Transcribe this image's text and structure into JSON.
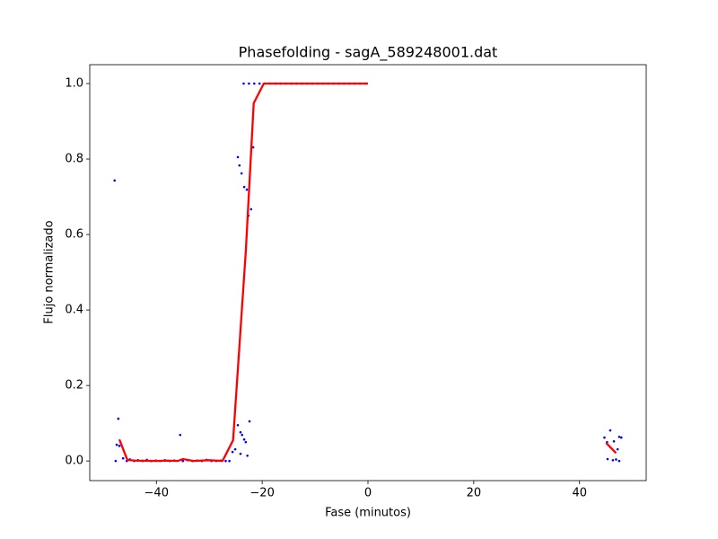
{
  "chart_data": {
    "type": "scatter",
    "title": "Phasefolding - sagA_589248001.dat",
    "xlabel": "Fase (minutos)",
    "ylabel": "Flujo normalizado",
    "xlim": [
      -52.6,
      52.6
    ],
    "ylim": [
      -0.052,
      1.05
    ],
    "xticks": [
      {
        "value": -40,
        "label": "−40"
      },
      {
        "value": -20,
        "label": "−20"
      },
      0,
      20,
      40
    ],
    "yticks": [
      {
        "value": 0,
        "label": "0.0"
      },
      0.2,
      0.4,
      0.6,
      0.8,
      {
        "value": 1,
        "label": "1.0"
      }
    ],
    "series": [
      {
        "type": "scatter",
        "color": "#0000ff",
        "x": [
          -47.9,
          -47.2,
          -47.5,
          -47.0,
          -47.7,
          -46.3,
          -45.6,
          -45.0,
          -44.2,
          -43.5,
          -42.6,
          -41.8,
          -41.0,
          -40.1,
          -39.3,
          -38.4,
          -37.5,
          -36.6,
          -35.5,
          -35.0,
          -34.1,
          -33.2,
          -32.3,
          -31.4,
          -30.5,
          -29.6,
          -28.7,
          -27.8,
          -26.9,
          -26.2,
          -25.6,
          -25.1,
          -24.6,
          -24.6,
          -24.3,
          -24.1,
          -24.1,
          -23.9,
          -23.8,
          -23.4,
          -23.4,
          -23.1,
          -22.9,
          -22.8,
          -22.6,
          -22.4,
          -22.1,
          -21.7,
          -23.5,
          -22.5,
          -21.5,
          -20.5,
          -19.5,
          -18.5,
          -17.5,
          -16.5,
          -15.5,
          -14.5,
          -13.5,
          -12.5,
          -11.5,
          -10.5,
          -9.5,
          -8.5,
          -7.5,
          -6.5,
          -5.5,
          -4.5,
          -3.5,
          -2.5,
          -1.5,
          -0.5,
          44.7,
          45.2,
          45.3,
          45.8,
          46.3,
          46.5,
          46.9,
          47.2,
          47.5,
          47.5,
          47.9
        ],
        "values": [
          0.743,
          0.112,
          0.043,
          0.04,
          0.0,
          0.007,
          0.0,
          0.004,
          0.0,
          0.002,
          0.0,
          0.003,
          0.0,
          0.001,
          0.0,
          0.002,
          0.0,
          0.001,
          0.069,
          0.0,
          0.002,
          0.0,
          0.001,
          0.0,
          0.003,
          0.0,
          0.0,
          0.001,
          0.0,
          0.0,
          0.024,
          0.031,
          0.805,
          0.095,
          0.783,
          0.076,
          0.019,
          0.762,
          0.069,
          0.726,
          0.057,
          0.05,
          0.719,
          0.014,
          0.65,
          0.105,
          0.667,
          0.831,
          1,
          1,
          1,
          1,
          1,
          1,
          1,
          1,
          1,
          1,
          1,
          1,
          1,
          1,
          1,
          1,
          1,
          1,
          1,
          1,
          1,
          1,
          1,
          1,
          0.062,
          0.05,
          0.005,
          0.081,
          0.002,
          0.052,
          0.004,
          0.031,
          0.064,
          0.0,
          0.062
        ]
      },
      {
        "type": "line",
        "color": "#ff0000",
        "x": [
          -47.0,
          -45.5,
          -44.0,
          -40.0,
          -38.0,
          -36.0,
          -35.0,
          -33.0,
          -30.0,
          -27.5,
          -25.5,
          -23.1,
          -21.6,
          -19.7,
          0,
          null,
          45.0,
          46.9
        ],
        "values": [
          0.057,
          0.003,
          0.001,
          0.0,
          0.001,
          0.0,
          0.005,
          0.0,
          0.002,
          0.0,
          0.055,
          0.555,
          0.948,
          1.0,
          1.0,
          null,
          0.048,
          0.021
        ]
      }
    ]
  }
}
